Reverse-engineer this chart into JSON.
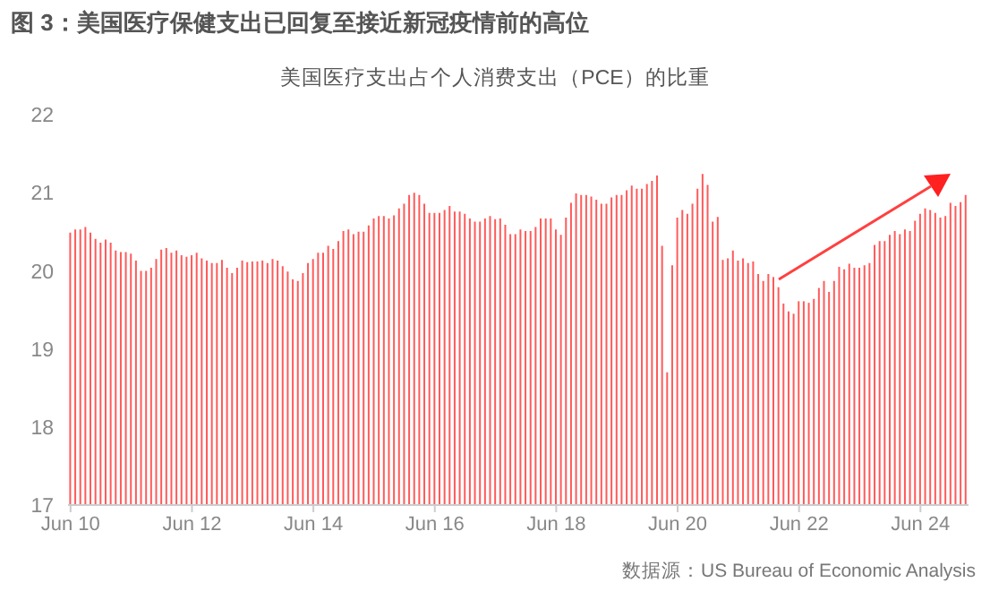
{
  "chart_data": {
    "type": "bar",
    "title": "图 3：美国医疗保健支出已回复至接近新冠疫情前的高位",
    "subtitle": "美国医疗支出占个人消费支出（PCE）的比重",
    "annotations": [
      "数据源：US Bureau of Economic Analysis"
    ],
    "categories": [
      "Jun 10",
      null,
      null,
      null,
      null,
      null,
      null,
      null,
      null,
      null,
      null,
      null,
      null,
      null,
      null,
      null,
      null,
      null,
      null,
      null,
      null,
      null,
      null,
      null,
      "Jun 12",
      null,
      null,
      null,
      null,
      null,
      null,
      null,
      null,
      null,
      null,
      null,
      null,
      null,
      null,
      null,
      null,
      null,
      null,
      null,
      null,
      null,
      null,
      null,
      "Jun 14",
      null,
      null,
      null,
      null,
      null,
      null,
      null,
      null,
      null,
      null,
      null,
      null,
      null,
      null,
      null,
      null,
      null,
      null,
      null,
      null,
      null,
      null,
      null,
      "Jun 16",
      null,
      null,
      null,
      null,
      null,
      null,
      null,
      null,
      null,
      null,
      null,
      null,
      null,
      null,
      null,
      null,
      null,
      null,
      null,
      null,
      null,
      null,
      null,
      "Jun 18",
      null,
      null,
      null,
      null,
      null,
      null,
      null,
      null,
      null,
      null,
      null,
      null,
      null,
      null,
      null,
      null,
      null,
      null,
      null,
      null,
      null,
      null,
      null,
      "Jun 20",
      null,
      null,
      null,
      null,
      null,
      null,
      null,
      null,
      null,
      null,
      null,
      null,
      null,
      null,
      null,
      null,
      null,
      null,
      null,
      null,
      null,
      null,
      null,
      "Jun 22",
      null,
      null,
      null,
      null,
      null,
      null,
      null,
      null,
      null,
      null,
      null,
      null,
      null,
      null,
      null,
      null,
      null,
      null,
      null,
      null,
      null,
      null,
      null,
      "Jun 24",
      null,
      null,
      null,
      null,
      null,
      null,
      null,
      null,
      null
    ],
    "values": [
      20.49,
      20.53,
      20.53,
      20.56,
      20.49,
      20.41,
      20.36,
      20.4,
      20.36,
      20.26,
      20.24,
      20.24,
      20.22,
      20.13,
      20.0,
      20.0,
      20.04,
      20.15,
      20.27,
      20.29,
      20.23,
      20.26,
      20.2,
      20.18,
      20.2,
      20.23,
      20.16,
      20.13,
      20.1,
      20.1,
      20.14,
      20.04,
      19.97,
      20.04,
      20.13,
      20.11,
      20.12,
      20.12,
      20.13,
      20.1,
      20.15,
      20.13,
      20.06,
      19.99,
      19.89,
      19.87,
      19.97,
      20.1,
      20.15,
      20.23,
      20.23,
      20.32,
      20.28,
      20.38,
      20.51,
      20.53,
      20.47,
      20.5,
      20.5,
      20.58,
      20.67,
      20.7,
      20.7,
      20.67,
      20.71,
      20.8,
      20.86,
      20.97,
      21.0,
      20.97,
      20.86,
      20.74,
      20.74,
      20.74,
      20.78,
      20.83,
      20.76,
      20.76,
      20.73,
      20.67,
      20.63,
      20.63,
      20.67,
      20.7,
      20.66,
      20.67,
      20.59,
      20.47,
      20.47,
      20.53,
      20.51,
      20.51,
      20.56,
      20.67,
      20.67,
      20.67,
      20.53,
      20.46,
      20.68,
      20.87,
      20.99,
      20.97,
      20.97,
      20.95,
      20.91,
      20.86,
      20.86,
      20.94,
      20.97,
      20.97,
      21.03,
      21.09,
      21.05,
      21.05,
      21.11,
      21.15,
      21.22,
      20.32,
      18.7,
      20.07,
      20.68,
      20.78,
      20.73,
      20.86,
      21.05,
      21.24,
      21.1,
      20.63,
      20.69,
      20.14,
      20.16,
      20.26,
      20.13,
      20.16,
      20.1,
      20.12,
      19.96,
      19.87,
      19.96,
      19.92,
      19.79,
      19.58,
      19.48,
      19.45,
      19.61,
      19.61,
      19.59,
      19.64,
      19.78,
      19.87,
      19.73,
      19.87,
      20.05,
      20.02,
      20.09,
      20.04,
      20.04,
      20.07,
      20.1,
      20.33,
      20.38,
      20.38,
      20.46,
      20.51,
      20.47,
      20.53,
      20.51,
      20.64,
      20.73,
      20.8,
      20.78,
      20.74,
      20.68,
      20.7,
      20.87,
      20.83,
      20.88,
      20.97
    ],
    "color": "#ff5a5a",
    "ylim": [
      17,
      22
    ],
    "yticks": [
      17,
      18,
      19,
      20,
      21,
      22
    ]
  }
}
